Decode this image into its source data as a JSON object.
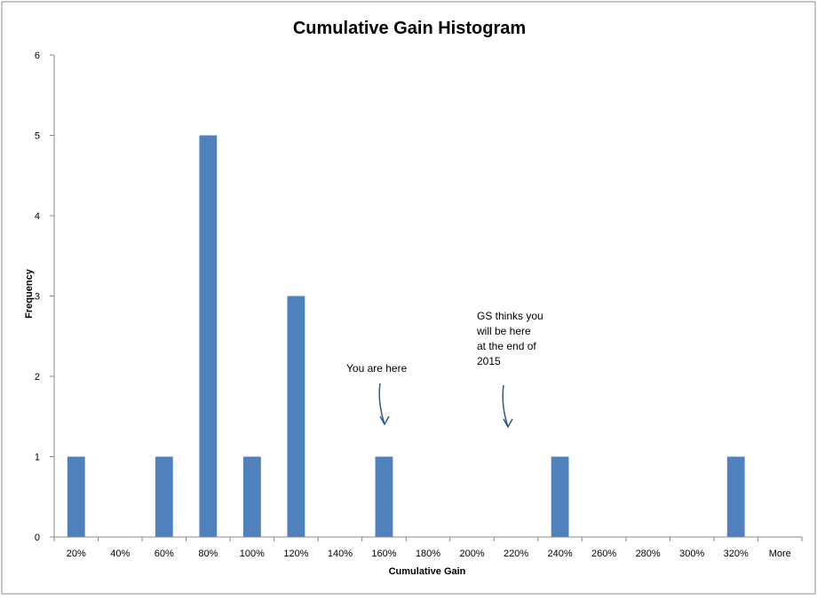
{
  "chart_data": {
    "type": "bar",
    "title": "Cumulative Gain Histogram",
    "xlabel": "Cumulative Gain",
    "ylabel": "Frequency",
    "ylim": [
      0,
      6
    ],
    "yticks": [
      0,
      1,
      2,
      3,
      4,
      5,
      6
    ],
    "grid": false,
    "legend": "none",
    "bar_color": "#4f81bd",
    "categories": [
      "20%",
      "40%",
      "60%",
      "80%",
      "100%",
      "120%",
      "140%",
      "160%",
      "180%",
      "200%",
      "220%",
      "240%",
      "260%",
      "280%",
      "300%",
      "320%",
      "More"
    ],
    "values": [
      1,
      0,
      1,
      5,
      1,
      3,
      0,
      1,
      0,
      0,
      0,
      1,
      0,
      0,
      0,
      1,
      0
    ],
    "annotations": [
      {
        "lines": [
          "You are here"
        ],
        "category": "160%"
      },
      {
        "lines": [
          "GS thinks you",
          "will be here",
          "at the end of",
          "2015"
        ],
        "category": "220%"
      }
    ],
    "annotation_color": "#2e5b8a"
  }
}
